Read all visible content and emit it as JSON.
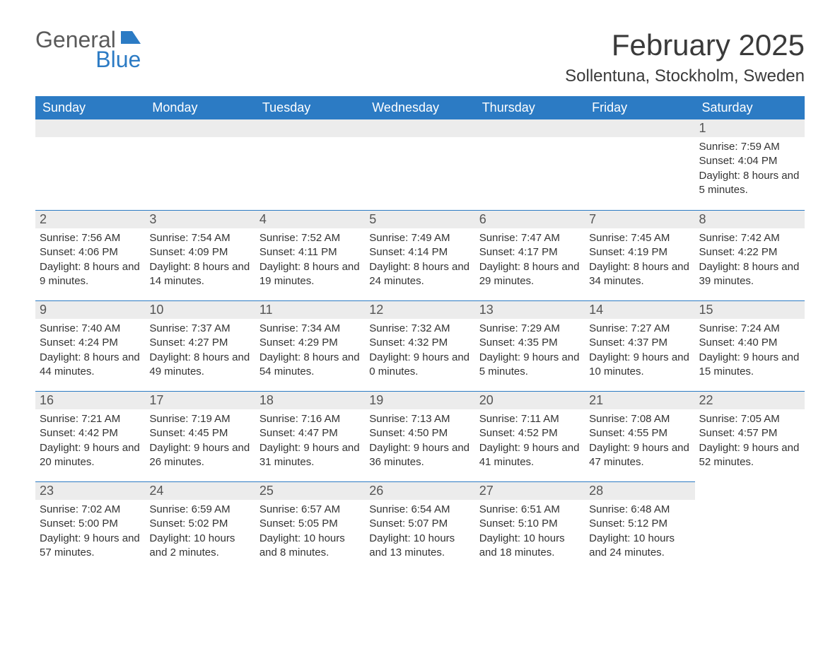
{
  "brand": {
    "general": "General",
    "blue": "Blue",
    "flag_color": "#2c7bc4"
  },
  "title": {
    "month_year": "February 2025",
    "location": "Sollentuna, Stockholm, Sweden"
  },
  "colors": {
    "header_bg": "#2c7bc4",
    "header_text": "#ffffff",
    "daynum_bg": "#ececec",
    "row_border": "#2c7bc4",
    "body_text": "#333333",
    "title_text": "#3a3a3a",
    "logo_gray": "#5a5a5a",
    "background": "#ffffff"
  },
  "fonts": {
    "month_year_size_pt": 32,
    "location_size_pt": 18,
    "weekday_size_pt": 14,
    "daynum_size_pt": 14,
    "detail_size_pt": 11
  },
  "weekdays": [
    "Sunday",
    "Monday",
    "Tuesday",
    "Wednesday",
    "Thursday",
    "Friday",
    "Saturday"
  ],
  "calendar": {
    "start_weekday_index": 6,
    "days": [
      {
        "n": 1,
        "sunrise": "7:59 AM",
        "sunset": "4:04 PM",
        "daylight": "8 hours and 5 minutes."
      },
      {
        "n": 2,
        "sunrise": "7:56 AM",
        "sunset": "4:06 PM",
        "daylight": "8 hours and 9 minutes."
      },
      {
        "n": 3,
        "sunrise": "7:54 AM",
        "sunset": "4:09 PM",
        "daylight": "8 hours and 14 minutes."
      },
      {
        "n": 4,
        "sunrise": "7:52 AM",
        "sunset": "4:11 PM",
        "daylight": "8 hours and 19 minutes."
      },
      {
        "n": 5,
        "sunrise": "7:49 AM",
        "sunset": "4:14 PM",
        "daylight": "8 hours and 24 minutes."
      },
      {
        "n": 6,
        "sunrise": "7:47 AM",
        "sunset": "4:17 PM",
        "daylight": "8 hours and 29 minutes."
      },
      {
        "n": 7,
        "sunrise": "7:45 AM",
        "sunset": "4:19 PM",
        "daylight": "8 hours and 34 minutes."
      },
      {
        "n": 8,
        "sunrise": "7:42 AM",
        "sunset": "4:22 PM",
        "daylight": "8 hours and 39 minutes."
      },
      {
        "n": 9,
        "sunrise": "7:40 AM",
        "sunset": "4:24 PM",
        "daylight": "8 hours and 44 minutes."
      },
      {
        "n": 10,
        "sunrise": "7:37 AM",
        "sunset": "4:27 PM",
        "daylight": "8 hours and 49 minutes."
      },
      {
        "n": 11,
        "sunrise": "7:34 AM",
        "sunset": "4:29 PM",
        "daylight": "8 hours and 54 minutes."
      },
      {
        "n": 12,
        "sunrise": "7:32 AM",
        "sunset": "4:32 PM",
        "daylight": "9 hours and 0 minutes."
      },
      {
        "n": 13,
        "sunrise": "7:29 AM",
        "sunset": "4:35 PM",
        "daylight": "9 hours and 5 minutes."
      },
      {
        "n": 14,
        "sunrise": "7:27 AM",
        "sunset": "4:37 PM",
        "daylight": "9 hours and 10 minutes."
      },
      {
        "n": 15,
        "sunrise": "7:24 AM",
        "sunset": "4:40 PM",
        "daylight": "9 hours and 15 minutes."
      },
      {
        "n": 16,
        "sunrise": "7:21 AM",
        "sunset": "4:42 PM",
        "daylight": "9 hours and 20 minutes."
      },
      {
        "n": 17,
        "sunrise": "7:19 AM",
        "sunset": "4:45 PM",
        "daylight": "9 hours and 26 minutes."
      },
      {
        "n": 18,
        "sunrise": "7:16 AM",
        "sunset": "4:47 PM",
        "daylight": "9 hours and 31 minutes."
      },
      {
        "n": 19,
        "sunrise": "7:13 AM",
        "sunset": "4:50 PM",
        "daylight": "9 hours and 36 minutes."
      },
      {
        "n": 20,
        "sunrise": "7:11 AM",
        "sunset": "4:52 PM",
        "daylight": "9 hours and 41 minutes."
      },
      {
        "n": 21,
        "sunrise": "7:08 AM",
        "sunset": "4:55 PM",
        "daylight": "9 hours and 47 minutes."
      },
      {
        "n": 22,
        "sunrise": "7:05 AM",
        "sunset": "4:57 PM",
        "daylight": "9 hours and 52 minutes."
      },
      {
        "n": 23,
        "sunrise": "7:02 AM",
        "sunset": "5:00 PM",
        "daylight": "9 hours and 57 minutes."
      },
      {
        "n": 24,
        "sunrise": "6:59 AM",
        "sunset": "5:02 PM",
        "daylight": "10 hours and 2 minutes."
      },
      {
        "n": 25,
        "sunrise": "6:57 AM",
        "sunset": "5:05 PM",
        "daylight": "10 hours and 8 minutes."
      },
      {
        "n": 26,
        "sunrise": "6:54 AM",
        "sunset": "5:07 PM",
        "daylight": "10 hours and 13 minutes."
      },
      {
        "n": 27,
        "sunrise": "6:51 AM",
        "sunset": "5:10 PM",
        "daylight": "10 hours and 18 minutes."
      },
      {
        "n": 28,
        "sunrise": "6:48 AM",
        "sunset": "5:12 PM",
        "daylight": "10 hours and 24 minutes."
      }
    ]
  },
  "labels": {
    "sunrise": "Sunrise:",
    "sunset": "Sunset:",
    "daylight": "Daylight:"
  }
}
